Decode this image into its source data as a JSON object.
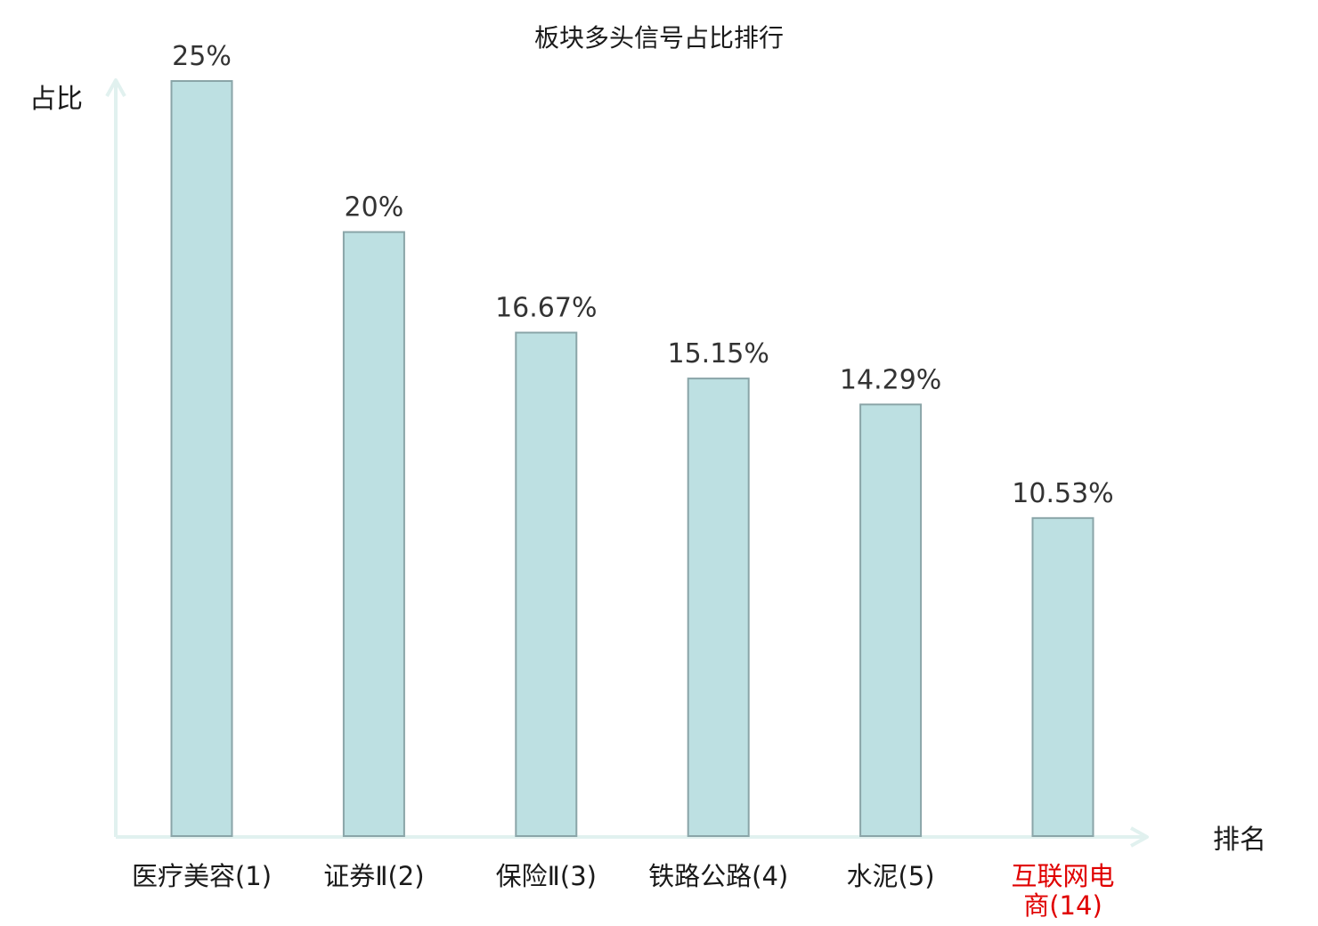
{
  "chart_data": {
    "type": "bar",
    "title": "板块多头信号占比排行",
    "ylabel": "占比",
    "xlabel": "排名",
    "categories": [
      [
        "医疗美容(1)"
      ],
      [
        "证券Ⅱ(2)"
      ],
      [
        "保险Ⅱ(3)"
      ],
      [
        "铁路公路(4)"
      ],
      [
        "水泥(5)"
      ],
      [
        "互联网电",
        "商(14)"
      ]
    ],
    "values": [
      25,
      20,
      16.67,
      15.15,
      14.29,
      10.53
    ],
    "value_labels": [
      "25%",
      "20%",
      "16.67%",
      "15.15%",
      "14.29%",
      "10.53%"
    ],
    "highlight_index": 5,
    "ylim": [
      0,
      25
    ],
    "grid": false,
    "colors": {
      "bar_fill": "#bde0e2",
      "bar_stroke": "#8aa5a8",
      "axis": "#e1f1ef",
      "label": "#1a1a1a",
      "highlight_label": "#e00000"
    }
  }
}
